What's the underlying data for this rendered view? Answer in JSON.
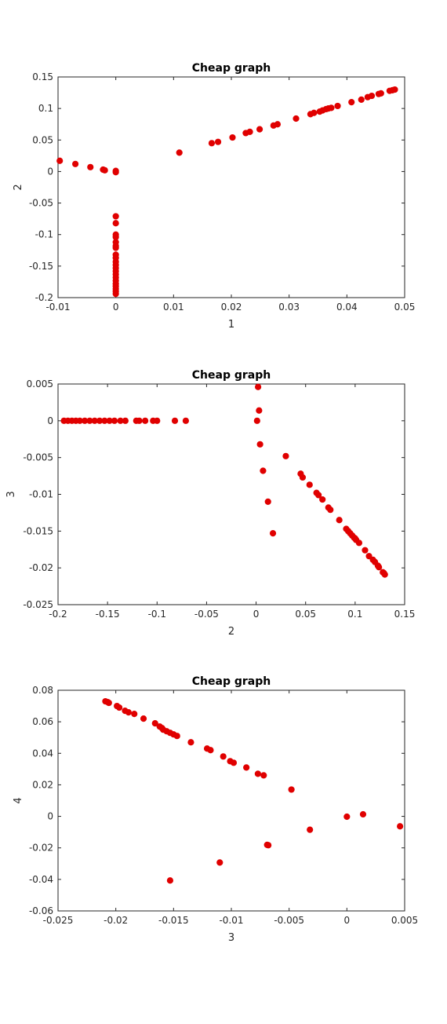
{
  "figure": {
    "background": "#ffffff",
    "marker_color": "#e00000"
  },
  "chart_data": [
    {
      "type": "scatter",
      "title": "Cheap graph",
      "xlabel": "1",
      "ylabel": "2",
      "xlim": [
        -0.01,
        0.05
      ],
      "ylim": [
        -0.2,
        0.15
      ],
      "xticks": [
        -0.01,
        0,
        0.01,
        0.02,
        0.03,
        0.04,
        0.05
      ],
      "xtick_labels": [
        "-0.01",
        "0",
        "0.01",
        "0.02",
        "0.03",
        "0.04",
        "0.05"
      ],
      "yticks": [
        -0.2,
        -0.15,
        -0.1,
        -0.05,
        0,
        0.05,
        0.1,
        0.15
      ],
      "ytick_labels": [
        "-0.2",
        "-0.15",
        "-0.1",
        "-0.05",
        "0",
        "0.05",
        "0.1",
        "0.15"
      ],
      "grid": false,
      "x": [
        -0.0097,
        -0.007,
        -0.0044,
        -0.0022,
        -0.0019,
        0.0,
        0.0,
        0.011,
        0.0166,
        0.0177,
        0.0202,
        0.0225,
        0.0232,
        0.0249,
        0.0273,
        0.028,
        0.0312,
        0.0337,
        0.0343,
        0.0353,
        0.0358,
        0.0364,
        0.0368,
        0.0373,
        0.0384,
        0.0408,
        0.0425,
        0.0436,
        0.0443,
        0.0455,
        0.0459,
        0.0474,
        0.0479,
        0.0483,
        0.0,
        0.0,
        0.0,
        0.0,
        0.0,
        0.0,
        0.0,
        0.0,
        0.0,
        0.0,
        0.0,
        0.0,
        0.0,
        0.0,
        0.0,
        0.0,
        0.0,
        0.0,
        0.0,
        0.0,
        0.0
      ],
      "y": [
        0.017,
        0.012,
        0.007,
        0.003,
        0.002,
        0.001,
        -0.001,
        0.03,
        0.045,
        0.047,
        0.054,
        0.061,
        0.063,
        0.067,
        0.073,
        0.075,
        0.084,
        0.091,
        0.093,
        0.095,
        0.097,
        0.099,
        0.1,
        0.101,
        0.104,
        0.11,
        0.114,
        0.118,
        0.12,
        0.123,
        0.124,
        0.128,
        0.129,
        0.13,
        -0.071,
        -0.082,
        -0.1,
        -0.104,
        -0.112,
        -0.118,
        -0.121,
        -0.132,
        -0.137,
        -0.143,
        -0.148,
        -0.153,
        -0.158,
        -0.163,
        -0.168,
        -0.173,
        -0.178,
        -0.182,
        -0.186,
        -0.19,
        -0.194
      ]
    },
    {
      "type": "scatter",
      "title": "Cheap graph",
      "xlabel": "2",
      "ylabel": "3",
      "xlim": [
        -0.2,
        0.15
      ],
      "ylim": [
        -0.025,
        0.005
      ],
      "xticks": [
        -0.2,
        -0.15,
        -0.1,
        -0.05,
        0,
        0.05,
        0.1,
        0.15
      ],
      "xtick_labels": [
        "-0.2",
        "-0.15",
        "-0.1",
        "-0.05",
        "0",
        "0.05",
        "0.1",
        "0.15"
      ],
      "yticks": [
        -0.025,
        -0.02,
        -0.015,
        -0.01,
        -0.005,
        0,
        0.005
      ],
      "ytick_labels": [
        "-0.025",
        "-0.02",
        "-0.015",
        "-0.01",
        "-0.005",
        "0",
        "0.005"
      ],
      "grid": false,
      "x": [
        -0.194,
        -0.19,
        -0.186,
        -0.182,
        -0.178,
        -0.173,
        -0.168,
        -0.163,
        -0.158,
        -0.153,
        -0.148,
        -0.143,
        -0.137,
        -0.132,
        -0.121,
        -0.118,
        -0.112,
        -0.104,
        -0.1,
        -0.082,
        -0.071,
        0.002,
        0.003,
        0.001,
        0.004,
        0.007,
        0.012,
        0.017,
        0.03,
        0.045,
        0.047,
        0.054,
        0.061,
        0.063,
        0.067,
        0.073,
        0.075,
        0.084,
        0.091,
        0.093,
        0.095,
        0.097,
        0.099,
        0.1,
        0.101,
        0.104,
        0.11,
        0.114,
        0.118,
        0.12,
        0.123,
        0.124,
        0.128,
        0.129,
        0.13
      ],
      "y": [
        0,
        0,
        0,
        0,
        0,
        0,
        0,
        0,
        0,
        0,
        0,
        0,
        0,
        0,
        0,
        0,
        0,
        0,
        0,
        0,
        0,
        0.0046,
        0.0014,
        0.0,
        -0.0032,
        -0.0068,
        -0.011,
        -0.0153,
        -0.0048,
        -0.0072,
        -0.0077,
        -0.0087,
        -0.0098,
        -0.0101,
        -0.0107,
        -0.0118,
        -0.0121,
        -0.0135,
        -0.0147,
        -0.015,
        -0.0153,
        -0.0156,
        -0.0159,
        -0.016,
        -0.0162,
        -0.0166,
        -0.0176,
        -0.0184,
        -0.0189,
        -0.0192,
        -0.0197,
        -0.0199,
        -0.0206,
        -0.0207,
        -0.0209
      ]
    },
    {
      "type": "scatter",
      "title": "Cheap graph",
      "xlabel": "3",
      "ylabel": "4",
      "xlim": [
        -0.025,
        0.005
      ],
      "ylim": [
        -0.06,
        0.08
      ],
      "xticks": [
        -0.025,
        -0.02,
        -0.015,
        -0.01,
        -0.005,
        0,
        0.005
      ],
      "xtick_labels": [
        "-0.025",
        "-0.02",
        "-0.015",
        "-0.01",
        "-0.005",
        "0",
        "0.005"
      ],
      "yticks": [
        -0.06,
        -0.04,
        -0.02,
        0,
        0.02,
        0.04,
        0.06,
        0.08
      ],
      "ytick_labels": [
        "-0.06",
        "-0.04",
        "-0.02",
        "0",
        "0.02",
        "0.04",
        "0.06",
        "0.08"
      ],
      "grid": false,
      "x": [
        -0.0209,
        -0.0207,
        -0.0206,
        -0.0199,
        -0.0197,
        -0.0192,
        -0.0189,
        -0.0184,
        -0.0176,
        -0.0166,
        -0.0162,
        -0.016,
        -0.0159,
        -0.0156,
        -0.0153,
        -0.015,
        -0.0147,
        -0.0135,
        -0.0121,
        -0.0118,
        -0.0107,
        -0.0101,
        -0.0098,
        -0.0087,
        -0.0077,
        -0.0072,
        -0.0048,
        0.0046,
        0.0014,
        0.0,
        -0.0032,
        -0.0068,
        -0.0069,
        -0.011,
        -0.0153
      ],
      "y": [
        0.073,
        0.0725,
        0.072,
        0.07,
        0.069,
        0.067,
        0.066,
        0.065,
        0.062,
        0.059,
        0.057,
        0.056,
        0.055,
        0.054,
        0.053,
        0.052,
        0.051,
        0.047,
        0.043,
        0.042,
        0.038,
        0.035,
        0.034,
        0.031,
        0.027,
        0.026,
        0.017,
        -0.0063,
        0.0013,
        -0.0002,
        -0.0085,
        -0.0183,
        -0.0181,
        -0.0293,
        -0.0407
      ]
    }
  ]
}
